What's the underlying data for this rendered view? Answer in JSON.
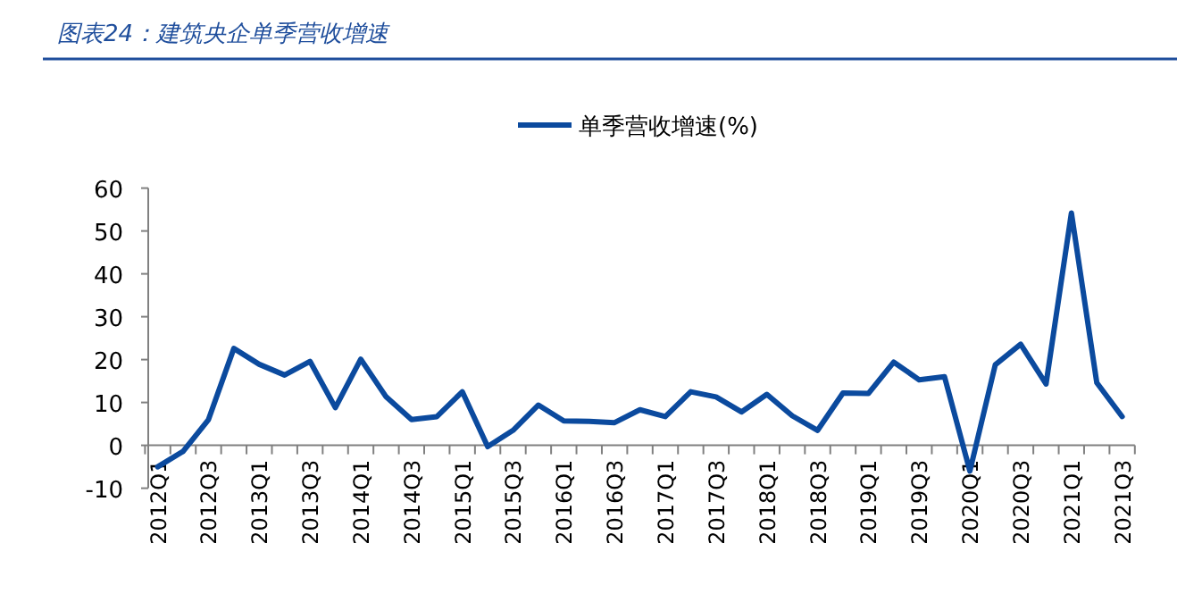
{
  "chart_data": {
    "type": "line",
    "title": "图表24：建筑央企单季营收增速",
    "categories": [
      "2012Q1",
      null,
      "2012Q3",
      null,
      "2013Q1",
      null,
      "2013Q3",
      null,
      "2014Q1",
      null,
      "2014Q3",
      null,
      "2015Q1",
      null,
      "2015Q3",
      null,
      "2016Q1",
      null,
      "2016Q3",
      null,
      "2017Q1",
      null,
      "2017Q3",
      null,
      "2018Q1",
      null,
      "2018Q3",
      null,
      "2019Q1",
      null,
      "2019Q3",
      null,
      "2020Q1",
      null,
      "2020Q3",
      null,
      "2021Q1",
      null,
      "2021Q3"
    ],
    "series": [
      {
        "name": "单季营收增速(%)",
        "color": "#0b4a9e",
        "values": [
          -5,
          -1.4,
          6,
          22.6,
          18.9,
          16.4,
          19.6,
          8.8,
          20.1,
          11.3,
          6,
          6.7,
          12.5,
          -0.3,
          3.5,
          9.4,
          5.7,
          5.6,
          5.3,
          8.3,
          6.7,
          12.5,
          11.3,
          7.8,
          11.9,
          6.9,
          3.5,
          12.2,
          12.1,
          19.4,
          15.3,
          16,
          -6,
          18.8,
          23.6,
          14.3,
          54.2,
          14.6,
          6.7
        ]
      }
    ],
    "ylim": [
      -10,
      60
    ],
    "yticks": [
      -10,
      0,
      10,
      20,
      30,
      40,
      50,
      60
    ],
    "legend": "top",
    "grid": false
  }
}
